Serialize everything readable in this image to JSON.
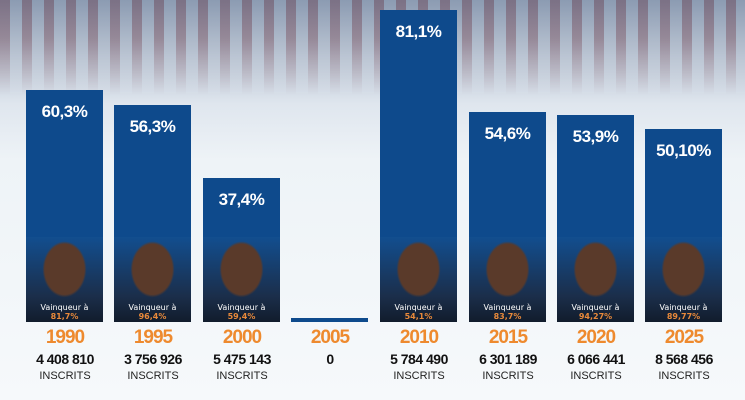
{
  "chart_data": {
    "type": "bar",
    "categories": [
      "1990",
      "1995",
      "2000",
      "2005",
      "2010",
      "2015",
      "2020",
      "2025"
    ],
    "values": [
      60.3,
      56.3,
      37.4,
      0,
      81.1,
      54.6,
      53.9,
      50.1
    ],
    "value_labels": [
      "60,3%",
      "56,3%",
      "37,4%",
      "",
      "81,1%",
      "54,6%",
      "53,9%",
      "50,10%"
    ],
    "winner_label": "Vainqueur à",
    "winner_pct": [
      "81,7%",
      "96,4%",
      "59,4%",
      "",
      "54,1%",
      "83,7%",
      "94,27%",
      "89,77%"
    ],
    "registered": [
      "4 408 810",
      "3 756 926",
      "5 475 143",
      "0",
      "5 784 490",
      "6 301 189",
      "6 066 441",
      "8 568 456"
    ],
    "registered_label": "INSCRITS",
    "ylim": [
      0,
      85
    ],
    "colors": {
      "bar": "#0e4a8c",
      "year": "#ee8a2e",
      "winner_pct": "#e8893a"
    }
  }
}
